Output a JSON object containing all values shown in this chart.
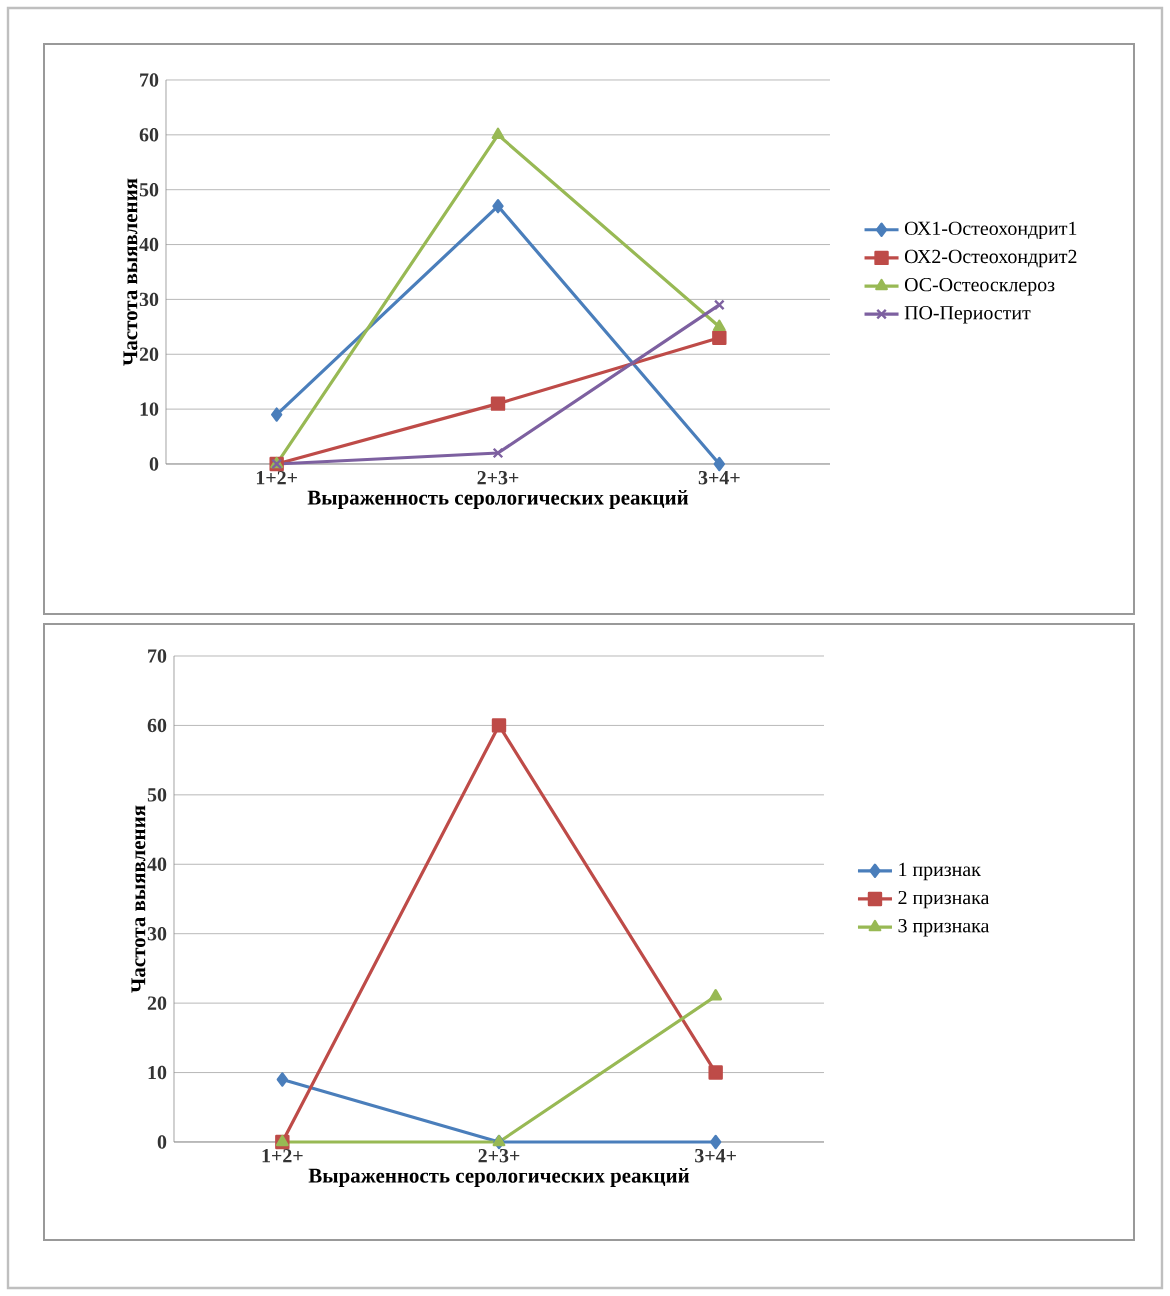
{
  "chart_data": [
    {
      "type": "line",
      "xlabel": "Выраженность серологических реакций",
      "ylabel": "Частота выявления",
      "categories": [
        "1+2+",
        "2+3+",
        "3+4+"
      ],
      "ylim": [
        0,
        70
      ],
      "yticks": [
        0,
        10,
        20,
        30,
        40,
        50,
        60,
        70
      ],
      "grid": "y",
      "legend": "right",
      "series": [
        {
          "name": "ОХ1-Остеохондрит1",
          "color": "#4a7ebb",
          "marker": "diamond",
          "values": [
            9,
            47,
            0
          ]
        },
        {
          "name": "ОХ2-Остеохондрит2",
          "color": "#be4b48",
          "marker": "square",
          "values": [
            0,
            11,
            23
          ]
        },
        {
          "name": "ОС-Остеосклероз",
          "color": "#98b954",
          "marker": "triangle",
          "values": [
            0,
            60,
            25
          ]
        },
        {
          "name": "ПО-Периостит",
          "color": "#7d60a0",
          "marker": "cross",
          "values": [
            0,
            2,
            29
          ]
        }
      ]
    },
    {
      "type": "line",
      "xlabel": "Выраженность серологических реакций",
      "ylabel": "Частота выявления",
      "categories": [
        "1+2+",
        "2+3+",
        "3+4+"
      ],
      "ylim": [
        0,
        70
      ],
      "yticks": [
        0,
        10,
        20,
        30,
        40,
        50,
        60,
        70
      ],
      "grid": "y",
      "legend": "right",
      "series": [
        {
          "name": "1 признак",
          "color": "#4a7ebb",
          "marker": "diamond",
          "values": [
            9,
            0,
            0
          ]
        },
        {
          "name": "2 признака",
          "color": "#be4b48",
          "marker": "square",
          "values": [
            0,
            60,
            10
          ]
        },
        {
          "name": "3 признака",
          "color": "#98b954",
          "marker": "triangle",
          "values": [
            0,
            0,
            21
          ]
        }
      ]
    }
  ]
}
